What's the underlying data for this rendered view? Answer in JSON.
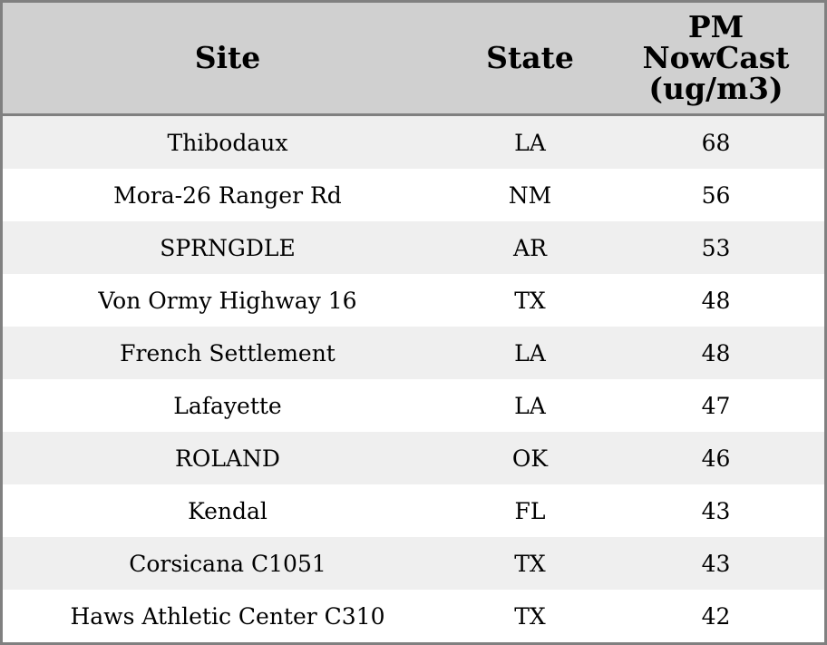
{
  "chart_data": {
    "type": "table",
    "columns": [
      "Site",
      "State",
      "PM NowCast (ug/m3)"
    ],
    "header_lines": [
      [
        "Site"
      ],
      [
        "State"
      ],
      [
        "PM",
        "NowCast",
        "(ug/m3)"
      ]
    ],
    "rows": [
      {
        "site": "Thibodaux",
        "state": "LA",
        "value": "68"
      },
      {
        "site": "Mora-26 Ranger Rd",
        "state": "NM",
        "value": "56"
      },
      {
        "site": "SPRNGDLE",
        "state": "AR",
        "value": "53"
      },
      {
        "site": "Von Ormy Highway 16",
        "state": "TX",
        "value": "48"
      },
      {
        "site": "French Settlement",
        "state": "LA",
        "value": "48"
      },
      {
        "site": "Lafayette",
        "state": "LA",
        "value": "47"
      },
      {
        "site": "ROLAND",
        "state": "OK",
        "value": "46"
      },
      {
        "site": "Kendal",
        "state": "FL",
        "value": "43"
      },
      {
        "site": "Corsicana C1051",
        "state": "TX",
        "value": "43"
      },
      {
        "site": "Haws Athletic Center C310",
        "state": "TX",
        "value": "42"
      }
    ],
    "colors": {
      "header_bg": "#d0d0d0",
      "row_stripe": "#efefef",
      "row_plain": "#ffffff",
      "border": "#808080"
    }
  }
}
